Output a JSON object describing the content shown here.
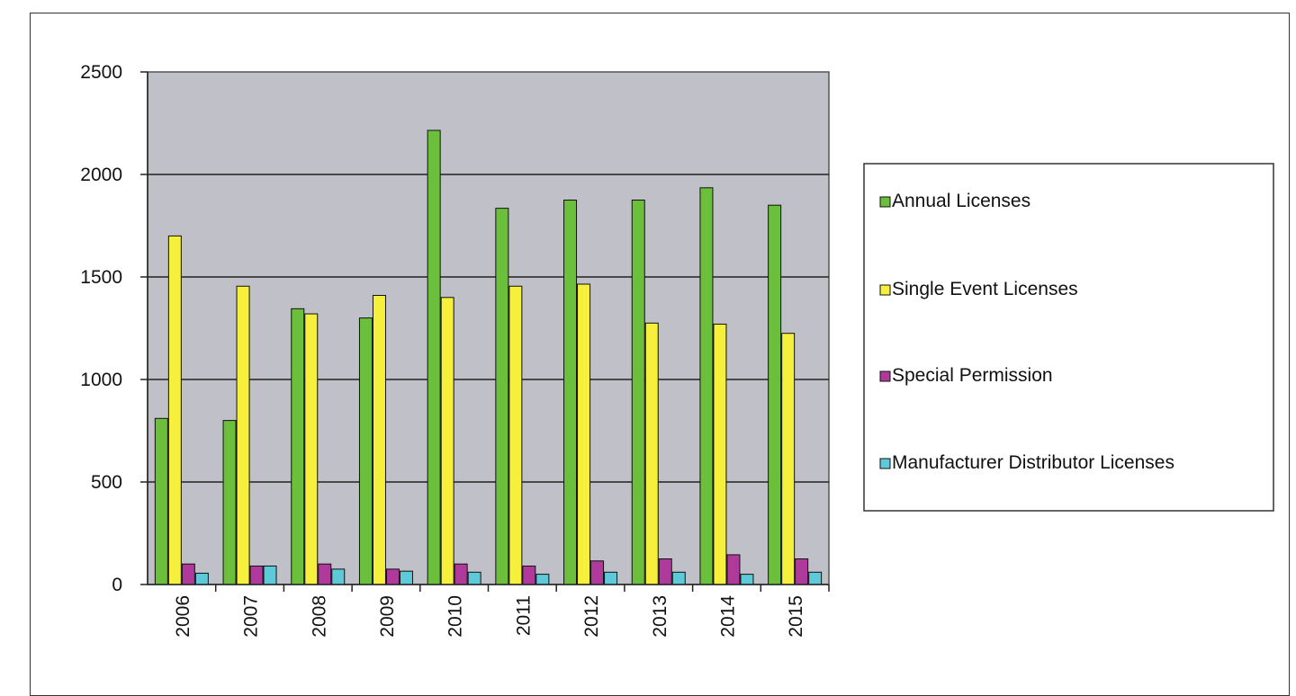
{
  "chart_data": {
    "type": "bar",
    "title": "",
    "xlabel": "",
    "ylabel": "",
    "categories": [
      "2006",
      "2007",
      "2008",
      "2009",
      "2010",
      "2011",
      "2012",
      "2013",
      "2014",
      "2015"
    ],
    "series": [
      {
        "name": "Annual Licenses",
        "color": "#6bbf3a",
        "values": [
          810,
          800,
          1345,
          1300,
          2215,
          1835,
          1875,
          1875,
          1935,
          1850
        ]
      },
      {
        "name": "Single Event Licenses",
        "color": "#f6f03c",
        "values": [
          1700,
          1455,
          1320,
          1410,
          1400,
          1455,
          1465,
          1275,
          1270,
          1225
        ]
      },
      {
        "name": "Special Permission",
        "color": "#b03a9c",
        "values": [
          100,
          90,
          100,
          75,
          100,
          90,
          115,
          125,
          145,
          125
        ]
      },
      {
        "name": "Manufacturer Distributor Licenses",
        "color": "#5ec9d8",
        "values": [
          55,
          90,
          75,
          65,
          60,
          50,
          60,
          60,
          50,
          60
        ]
      }
    ],
    "ylim": [
      0,
      2500
    ],
    "yticks": [
      0,
      500,
      1000,
      1500,
      2000,
      2500
    ],
    "grid": true,
    "plot_background": "#c0c0c8",
    "legend_position": "right"
  }
}
